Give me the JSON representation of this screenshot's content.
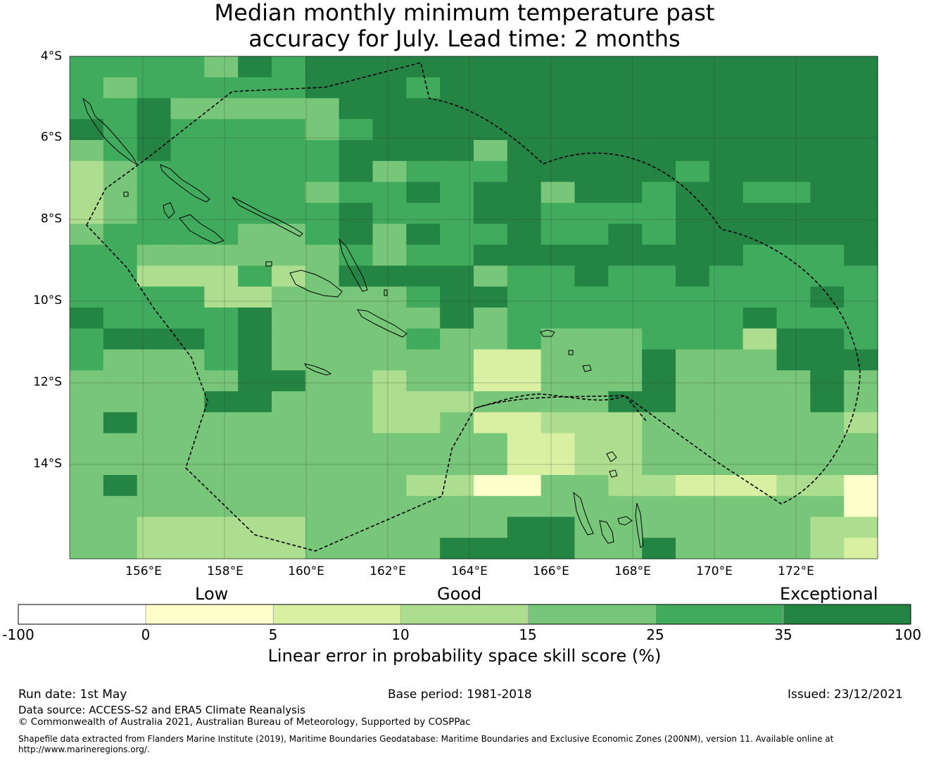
{
  "title": {
    "line1": "Median monthly minimum temperature past",
    "line2": "accuracy for July. Lead time: 2 months"
  },
  "map": {
    "lat_labels": [
      "4°S",
      "6°S",
      "8°S",
      "10°S",
      "12°S",
      "14°S"
    ],
    "lon_labels": [
      "156°E",
      "158°E",
      "160°E",
      "162°E",
      "164°E",
      "166°E",
      "168°E",
      "170°E",
      "172°E"
    ],
    "grid_values": [
      [
        28,
        28,
        28,
        28,
        20,
        40,
        30,
        45,
        45,
        45,
        45,
        45,
        45,
        45,
        45,
        45,
        45,
        45,
        45,
        45,
        45,
        45,
        45,
        45
      ],
      [
        28,
        18,
        28,
        28,
        28,
        28,
        28,
        40,
        40,
        40,
        28,
        40,
        40,
        45,
        45,
        45,
        45,
        45,
        45,
        45,
        45,
        45,
        45,
        45
      ],
      [
        28,
        28,
        40,
        18,
        18,
        18,
        18,
        18,
        40,
        40,
        40,
        40,
        40,
        45,
        45,
        45,
        45,
        45,
        45,
        45,
        45,
        45,
        45,
        45
      ],
      [
        40,
        28,
        40,
        28,
        28,
        28,
        28,
        18,
        28,
        40,
        40,
        40,
        40,
        45,
        45,
        45,
        45,
        45,
        45,
        45,
        45,
        45,
        45,
        45
      ],
      [
        18,
        28,
        40,
        28,
        28,
        28,
        28,
        28,
        40,
        40,
        40,
        40,
        18,
        45,
        45,
        45,
        45,
        45,
        45,
        45,
        45,
        45,
        45,
        45
      ],
      [
        12,
        18,
        28,
        28,
        28,
        28,
        28,
        28,
        40,
        18,
        28,
        28,
        28,
        45,
        45,
        45,
        45,
        45,
        28,
        45,
        45,
        45,
        45,
        45
      ],
      [
        12,
        18,
        28,
        28,
        28,
        28,
        28,
        18,
        28,
        28,
        40,
        28,
        40,
        40,
        18,
        40,
        40,
        28,
        40,
        40,
        28,
        28,
        45,
        45
      ],
      [
        12,
        18,
        28,
        28,
        28,
        28,
        28,
        28,
        40,
        28,
        28,
        28,
        45,
        45,
        28,
        28,
        28,
        28,
        45,
        45,
        45,
        45,
        45,
        45
      ],
      [
        18,
        28,
        28,
        28,
        28,
        18,
        18,
        28,
        40,
        18,
        40,
        28,
        28,
        40,
        28,
        28,
        40,
        28,
        45,
        40,
        40,
        45,
        45,
        45
      ],
      [
        28,
        28,
        18,
        18,
        18,
        18,
        18,
        18,
        28,
        18,
        28,
        28,
        40,
        45,
        45,
        45,
        45,
        45,
        45,
        45,
        28,
        28,
        28,
        45
      ],
      [
        28,
        28,
        12,
        12,
        12,
        28,
        12,
        18,
        40,
        40,
        40,
        40,
        18,
        28,
        28,
        45,
        28,
        28,
        45,
        28,
        28,
        28,
        28,
        28
      ],
      [
        28,
        28,
        28,
        28,
        12,
        12,
        18,
        18,
        18,
        18,
        28,
        45,
        45,
        28,
        28,
        28,
        28,
        28,
        28,
        28,
        28,
        28,
        40,
        28
      ],
      [
        45,
        28,
        28,
        28,
        28,
        40,
        18,
        18,
        18,
        18,
        18,
        45,
        18,
        28,
        28,
        28,
        28,
        28,
        28,
        28,
        40,
        28,
        28,
        28
      ],
      [
        28,
        40,
        40,
        45,
        28,
        40,
        18,
        18,
        18,
        18,
        28,
        18,
        18,
        28,
        18,
        18,
        18,
        28,
        28,
        28,
        12,
        40,
        40,
        28
      ],
      [
        28,
        18,
        18,
        18,
        28,
        40,
        18,
        18,
        18,
        18,
        18,
        18,
        8,
        8,
        18,
        18,
        18,
        40,
        18,
        18,
        18,
        40,
        40,
        40
      ],
      [
        18,
        18,
        18,
        18,
        18,
        40,
        40,
        18,
        18,
        12,
        18,
        18,
        8,
        8,
        18,
        18,
        18,
        40,
        18,
        18,
        18,
        18,
        40,
        18
      ],
      [
        18,
        18,
        18,
        18,
        40,
        40,
        18,
        18,
        18,
        12,
        12,
        12,
        18,
        18,
        18,
        18,
        40,
        40,
        18,
        18,
        18,
        18,
        40,
        18
      ],
      [
        18,
        40,
        18,
        18,
        18,
        18,
        18,
        18,
        18,
        12,
        12,
        18,
        8,
        8,
        12,
        12,
        12,
        18,
        18,
        18,
        18,
        18,
        18,
        12
      ],
      [
        18,
        18,
        18,
        18,
        18,
        18,
        18,
        18,
        18,
        18,
        18,
        18,
        18,
        8,
        8,
        12,
        12,
        18,
        18,
        18,
        18,
        18,
        18,
        18
      ],
      [
        18,
        18,
        18,
        18,
        18,
        18,
        18,
        18,
        18,
        18,
        18,
        18,
        18,
        8,
        8,
        12,
        12,
        18,
        18,
        18,
        18,
        18,
        18,
        18
      ],
      [
        18,
        40,
        18,
        18,
        18,
        18,
        18,
        18,
        18,
        18,
        12,
        12,
        2,
        2,
        18,
        18,
        12,
        12,
        8,
        8,
        8,
        12,
        12,
        2
      ],
      [
        18,
        18,
        18,
        18,
        18,
        18,
        18,
        18,
        18,
        18,
        18,
        18,
        18,
        18,
        18,
        18,
        18,
        18,
        18,
        18,
        18,
        18,
        18,
        2
      ],
      [
        18,
        18,
        12,
        12,
        12,
        12,
        12,
        18,
        18,
        18,
        18,
        18,
        18,
        40,
        40,
        18,
        18,
        18,
        18,
        18,
        18,
        18,
        12,
        12
      ],
      [
        18,
        18,
        12,
        12,
        12,
        12,
        12,
        18,
        18,
        18,
        18,
        40,
        40,
        40,
        40,
        18,
        18,
        40,
        18,
        18,
        18,
        18,
        12,
        8
      ]
    ]
  },
  "colorbar": {
    "colors": [
      "#ffffff",
      "#ffffcc",
      "#d9f0a3",
      "#addd8e",
      "#78c679",
      "#41ab5d",
      "#238443"
    ],
    "ticks": [
      "-100",
      "0",
      "5",
      "10",
      "15",
      "25",
      "35",
      "100"
    ],
    "categories": [
      "Low",
      "Good",
      "Exceptional"
    ],
    "label": "Linear error in probability space skill score (%)"
  },
  "footer": {
    "run_date": "Run date: 1st May",
    "base_period": "Base period: 1981-2018",
    "issued": "Issued: 23/12/2021",
    "data_source": "Data source: ACCESS-S2 and ERA5 Climate Reanalysis",
    "copyright": "© Commonwealth of Australia 2021, Australian Bureau of Meteorology, Supported by COSPPac",
    "shapefile_line1": "Shapefile data extracted from Flanders Marine Institute (2019), Maritime Boundaries Geodatabase: Maritime Boundaries and Exclusive Economic Zones (200NM), version 11. Available online at",
    "shapefile_line2": "http://www.marineregions.org/."
  }
}
